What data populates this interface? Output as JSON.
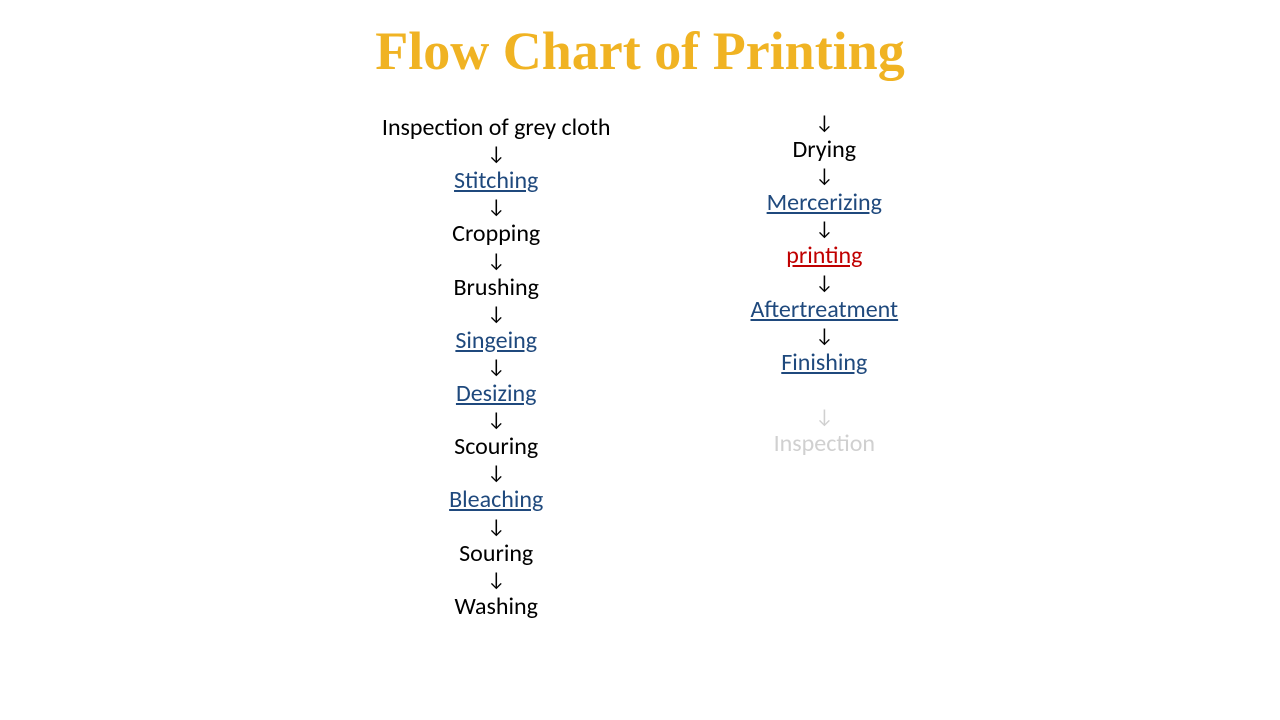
{
  "title": {
    "text": "Flow Chart of Printing",
    "color": "#f0b323",
    "fontsize": 54
  },
  "arrow": "↓",
  "arrow_color": "#000000",
  "arrow_fontsize": 20,
  "step_fontsize": 24,
  "colors": {
    "black": "#000000",
    "blue_link": "#1f497d",
    "red": "#c00000",
    "faded": "#d0d0d0"
  },
  "column1": [
    {
      "text": "Inspection of grey cloth",
      "color": "#000000",
      "link": false
    },
    {
      "text": "Stitching",
      "color": "#1f497d",
      "link": true
    },
    {
      "text": "Cropping",
      "color": "#000000",
      "link": false
    },
    {
      "text": "Brushing",
      "color": "#000000",
      "link": false
    },
    {
      "text": "Singeing",
      "color": "#1f497d",
      "link": true
    },
    {
      "text": "Desizing",
      "color": "#1f497d",
      "link": true
    },
    {
      "text": "Scouring",
      "color": "#000000",
      "link": false
    },
    {
      "text": "Bleaching",
      "color": "#1f497d",
      "link": true
    },
    {
      "text": "Souring",
      "color": "#000000",
      "link": false
    },
    {
      "text": "Washing",
      "color": "#000000",
      "link": false
    }
  ],
  "column2": [
    {
      "text": "Drying",
      "color": "#000000",
      "link": false,
      "lead_arrow": true
    },
    {
      "text": "Mercerizing",
      "color": "#1f497d",
      "link": true
    },
    {
      "text": "printing",
      "color": "#c00000",
      "link": true
    },
    {
      "text": "Aftertreatment",
      "color": "#1f497d",
      "link": true
    },
    {
      "text": "Finishing",
      "color": "#1f497d",
      "link": true
    }
  ],
  "faded_item": {
    "arrow": "↓",
    "text": "Inspection",
    "color": "#d0d0d0"
  }
}
